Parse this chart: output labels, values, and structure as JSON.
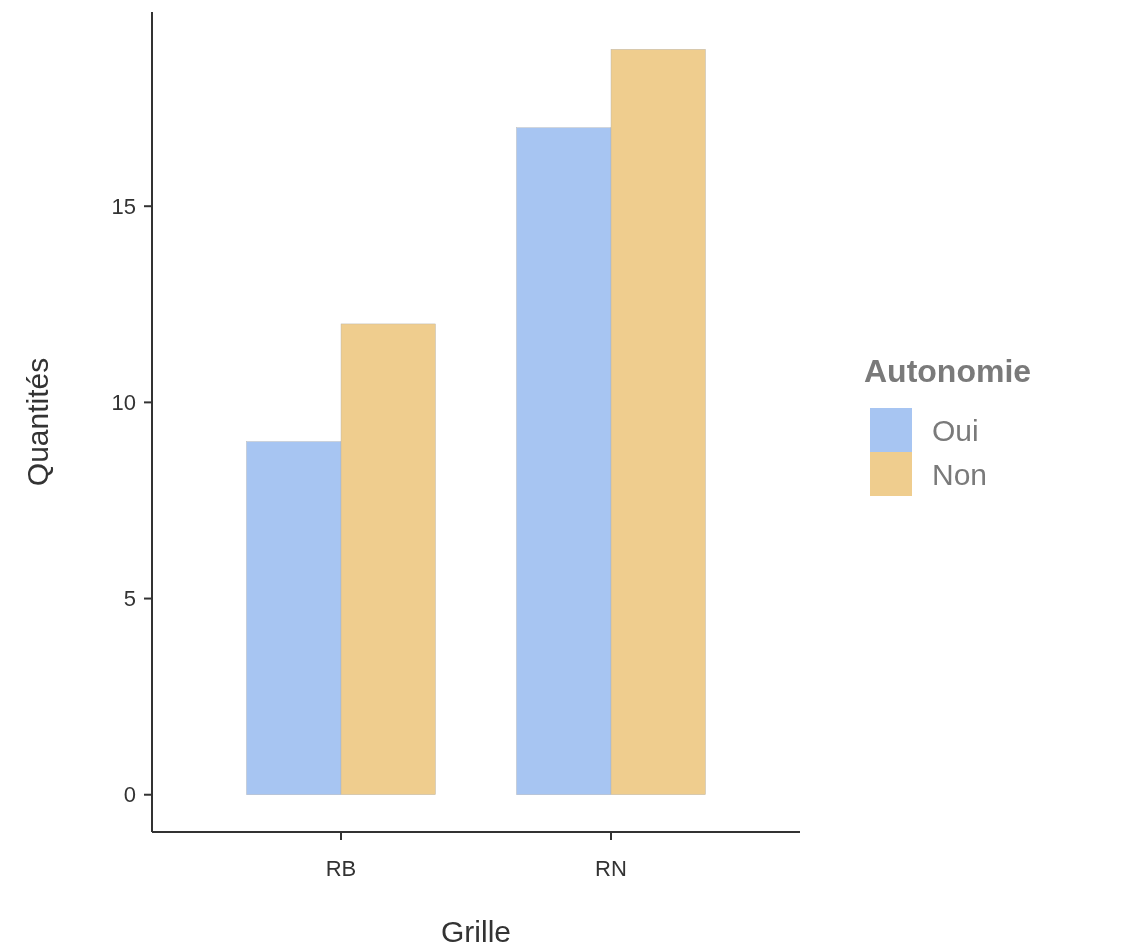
{
  "chart_data": {
    "type": "bar",
    "xlabel": "Grille",
    "ylabel": "Quantités",
    "legend_title": "Autonomie",
    "categories": [
      "RB",
      "RN"
    ],
    "series": [
      {
        "name": "Oui",
        "color": "#a7c5f2",
        "values": [
          9,
          17
        ]
      },
      {
        "name": "Non",
        "color": "#efcd8e",
        "values": [
          12,
          19
        ]
      }
    ],
    "ylim": [
      -0.95,
      19.95
    ],
    "yticks": [
      0,
      5,
      10,
      15
    ],
    "grid": false,
    "legend": "right"
  }
}
